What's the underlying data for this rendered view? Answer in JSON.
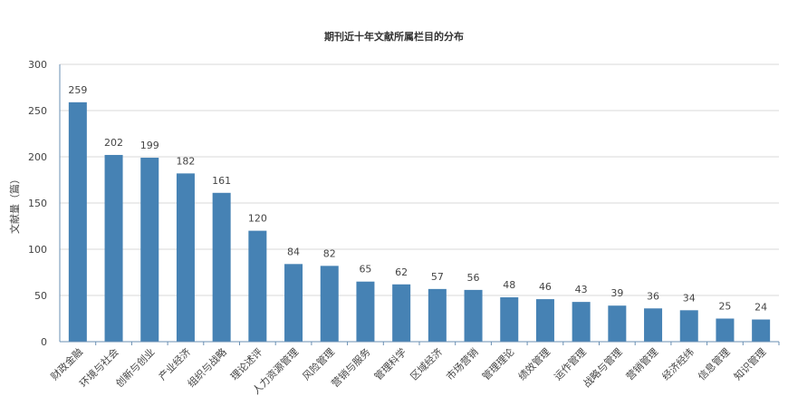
{
  "chart_data": {
    "type": "bar",
    "title": "期刊近十年文献所属栏目的分布",
    "xlabel": "",
    "ylabel": "文献量（篇）",
    "ylim": [
      0,
      300
    ],
    "yticks": [
      0,
      50,
      100,
      150,
      200,
      250,
      300
    ],
    "grid": true,
    "bar_color": "#4682b4",
    "categories": [
      "财政金融",
      "环境与社会",
      "创新与创业",
      "产业经济",
      "组织与战略",
      "理论述评",
      "人力资源管理",
      "风险管理",
      "营销与服务",
      "管理科学",
      "区域经济",
      "市场营销",
      "管理理论",
      "绩效管理",
      "运作管理",
      "战略与管理",
      "营销管理",
      "经济经纬",
      "信息管理",
      "知识管理"
    ],
    "values": [
      259,
      202,
      199,
      182,
      161,
      120,
      84,
      82,
      65,
      62,
      57,
      56,
      48,
      46,
      43,
      39,
      36,
      34,
      25,
      24
    ]
  }
}
